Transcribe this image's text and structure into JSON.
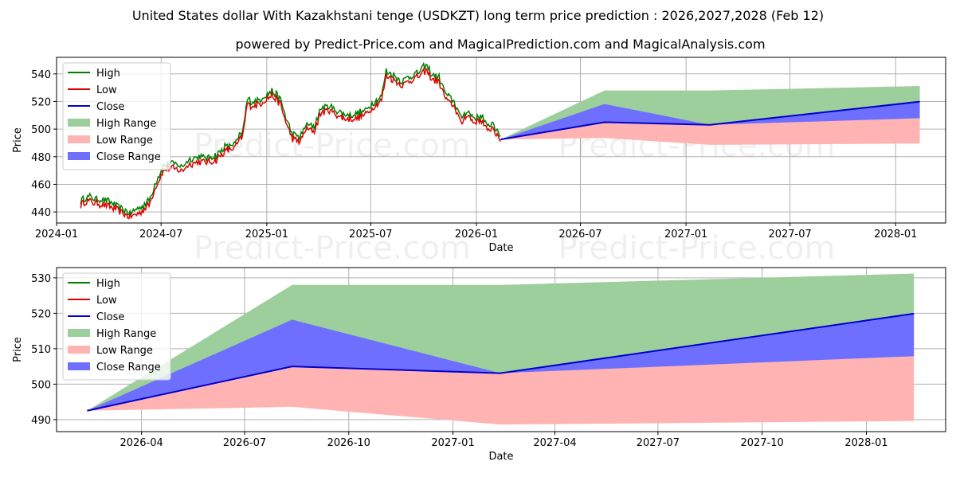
{
  "header": {
    "title": "United States dollar With Kazakhstani tenge (USDKZT) long term price prediction : 2026,2027,2028 (Feb 12)",
    "subtitle": "powered by Predict-Price.com and MagicalPrediction.com and MagicalAnalysis.com"
  },
  "watermark": "Predict-Price.com",
  "colors": {
    "high": "#008000",
    "low": "#e00000",
    "close": "#0000cc",
    "high_range": "#9ccf9c",
    "low_range": "#ffb3b3",
    "close_range": "#6f6fff",
    "grid": "#b0b0b0"
  },
  "chart_data": [
    {
      "type": "line",
      "name": "top-panel",
      "xlabel": "Date",
      "ylabel": "Price",
      "grid": true,
      "legend_position": "upper-left",
      "xlim": [
        "2024-01-01",
        "2028-03-28"
      ],
      "ylim": [
        432,
        552
      ],
      "yticks": [
        440,
        460,
        480,
        500,
        520,
        540
      ],
      "xticks": [
        {
          "date": "2024-01-01",
          "label": "2024-01"
        },
        {
          "date": "2024-07-01",
          "label": "2024-07"
        },
        {
          "date": "2025-01-01",
          "label": "2025-01"
        },
        {
          "date": "2025-07-01",
          "label": "2025-07"
        },
        {
          "date": "2026-01-01",
          "label": "2026-01"
        },
        {
          "date": "2026-07-01",
          "label": "2026-07"
        },
        {
          "date": "2027-01-01",
          "label": "2027-01"
        },
        {
          "date": "2027-07-01",
          "label": "2027-07"
        },
        {
          "date": "2028-01-01",
          "label": "2028-01"
        }
      ],
      "legend": [
        "High",
        "Low",
        "High Range",
        "Low Range",
        "Close Range",
        "Close"
      ],
      "history": [
        [
          "2024-02-12",
          446
        ],
        [
          "2024-02-22",
          449
        ],
        [
          "2024-03-05",
          448
        ],
        [
          "2024-03-20",
          447
        ],
        [
          "2024-04-05",
          445
        ],
        [
          "2024-04-20",
          441
        ],
        [
          "2024-05-08",
          437
        ],
        [
          "2024-05-25",
          441
        ],
        [
          "2024-06-10",
          446
        ],
        [
          "2024-06-22",
          460
        ],
        [
          "2024-07-05",
          471
        ],
        [
          "2024-07-20",
          473
        ],
        [
          "2024-08-05",
          471
        ],
        [
          "2024-08-20",
          476
        ],
        [
          "2024-09-05",
          478
        ],
        [
          "2024-09-20",
          477
        ],
        [
          "2024-10-05",
          479
        ],
        [
          "2024-10-20",
          485
        ],
        [
          "2024-11-05",
          487
        ],
        [
          "2024-11-20",
          496
        ],
        [
          "2024-11-28",
          519
        ],
        [
          "2024-12-10",
          518
        ],
        [
          "2024-12-25",
          521
        ],
        [
          "2025-01-10",
          526
        ],
        [
          "2025-01-25",
          519
        ],
        [
          "2025-02-05",
          504
        ],
        [
          "2025-02-15",
          494
        ],
        [
          "2025-02-28",
          492
        ],
        [
          "2025-03-10",
          501
        ],
        [
          "2025-03-25",
          500
        ],
        [
          "2025-04-05",
          513
        ],
        [
          "2025-04-20",
          515
        ],
        [
          "2025-05-05",
          511
        ],
        [
          "2025-05-20",
          508
        ],
        [
          "2025-06-05",
          509
        ],
        [
          "2025-06-20",
          511
        ],
        [
          "2025-07-05",
          517
        ],
        [
          "2025-07-20",
          522
        ],
        [
          "2025-07-28",
          540
        ],
        [
          "2025-08-10",
          537
        ],
        [
          "2025-08-25",
          533
        ],
        [
          "2025-09-10",
          537
        ],
        [
          "2025-09-25",
          540
        ],
        [
          "2025-10-05",
          544
        ],
        [
          "2025-10-15",
          538
        ],
        [
          "2025-10-28",
          535
        ],
        [
          "2025-11-10",
          522
        ],
        [
          "2025-11-25",
          517
        ],
        [
          "2025-12-05",
          505
        ],
        [
          "2025-12-15",
          512
        ],
        [
          "2025-12-28",
          506
        ],
        [
          "2026-01-10",
          508
        ],
        [
          "2026-01-20",
          499
        ],
        [
          "2026-01-30",
          503
        ],
        [
          "2026-02-08",
          494
        ],
        [
          "2026-02-12",
          492.5
        ]
      ],
      "forecast": {
        "dates": [
          "2026-02-12",
          "2026-08-12",
          "2027-02-12",
          "2028-02-12"
        ],
        "high_upper": [
          492.5,
          528.0,
          528.0,
          531.2
        ],
        "low_lower": [
          492.5,
          493.6,
          488.6,
          489.6
        ],
        "close_upper": [
          492.5,
          518.2,
          503.1,
          519.9
        ],
        "close_lower": [
          492.5,
          505.0,
          503.1,
          507.9
        ],
        "close": [
          492.5,
          505.0,
          503.1,
          519.9
        ]
      }
    },
    {
      "type": "area",
      "name": "bottom-panel",
      "xlabel": "Date",
      "ylabel": "Price",
      "grid": true,
      "legend_position": "upper-left",
      "xlim": [
        "2026-01-16",
        "2028-03-11"
      ],
      "ylim": [
        486.6,
        532.9
      ],
      "yticks": [
        490,
        500,
        510,
        520,
        530
      ],
      "xticks": [
        {
          "date": "2026-04-01",
          "label": "2026-04"
        },
        {
          "date": "2026-07-01",
          "label": "2026-07"
        },
        {
          "date": "2026-10-01",
          "label": "2026-10"
        },
        {
          "date": "2027-01-01",
          "label": "2027-01"
        },
        {
          "date": "2027-04-01",
          "label": "2027-04"
        },
        {
          "date": "2027-07-01",
          "label": "2027-07"
        },
        {
          "date": "2027-10-01",
          "label": "2027-10"
        },
        {
          "date": "2028-01-01",
          "label": "2028-01"
        }
      ],
      "legend": [
        "High",
        "Low",
        "Close",
        "High Range",
        "Low Range",
        "Close Range"
      ],
      "forecast": {
        "dates": [
          "2026-02-12",
          "2026-08-12",
          "2027-02-12",
          "2028-02-12"
        ],
        "high_upper": [
          492.5,
          528.0,
          528.0,
          531.2
        ],
        "low_lower": [
          492.5,
          493.6,
          488.6,
          489.6
        ],
        "close_upper": [
          492.5,
          518.2,
          503.1,
          519.9
        ],
        "close_lower": [
          492.5,
          505.0,
          503.1,
          507.9
        ],
        "close": [
          492.5,
          505.0,
          503.1,
          519.9
        ]
      }
    }
  ]
}
